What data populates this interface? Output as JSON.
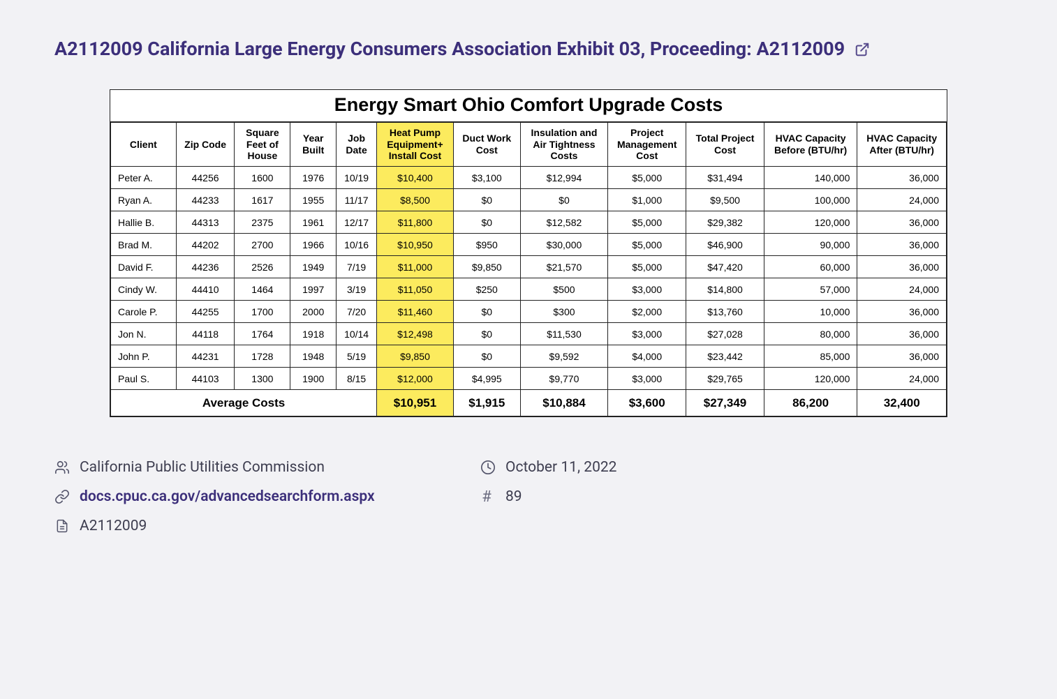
{
  "title": "A2112009 California Large Energy Consumers Association Exhibit 03, Proceeding: A2112009",
  "table": {
    "title": "Energy Smart Ohio Comfort Upgrade Costs",
    "highlight_color": "#fceb5e",
    "border_color": "#222222",
    "columns": [
      "Client",
      "Zip Code",
      "Square Feet of House",
      "Year Built",
      "Job Date",
      "Heat Pump Equipment+ Install Cost",
      "Duct Work Cost",
      "Insulation and Air Tightness Costs",
      "Project Management Cost",
      "Total Project Cost",
      "HVAC Capacity Before (BTU/hr)",
      "HVAC Capacity After (BTU/hr)"
    ],
    "rows": [
      [
        "Peter A.",
        "44256",
        "1600",
        "1976",
        "10/19",
        "$10,400",
        "$3,100",
        "$12,994",
        "$5,000",
        "$31,494",
        "140,000",
        "36,000"
      ],
      [
        "Ryan A.",
        "44233",
        "1617",
        "1955",
        "11/17",
        "$8,500",
        "$0",
        "$0",
        "$1,000",
        "$9,500",
        "100,000",
        "24,000"
      ],
      [
        "Hallie B.",
        "44313",
        "2375",
        "1961",
        "12/17",
        "$11,800",
        "$0",
        "$12,582",
        "$5,000",
        "$29,382",
        "120,000",
        "36,000"
      ],
      [
        "Brad M.",
        "44202",
        "2700",
        "1966",
        "10/16",
        "$10,950",
        "$950",
        "$30,000",
        "$5,000",
        "$46,900",
        "90,000",
        "36,000"
      ],
      [
        "David F.",
        "44236",
        "2526",
        "1949",
        "7/19",
        "$11,000",
        "$9,850",
        "$21,570",
        "$5,000",
        "$47,420",
        "60,000",
        "36,000"
      ],
      [
        "Cindy W.",
        "44410",
        "1464",
        "1997",
        "3/19",
        "$11,050",
        "$250",
        "$500",
        "$3,000",
        "$14,800",
        "57,000",
        "24,000"
      ],
      [
        "Carole P.",
        "44255",
        "1700",
        "2000",
        "7/20",
        "$11,460",
        "$0",
        "$300",
        "$2,000",
        "$13,760",
        "10,000",
        "36,000"
      ],
      [
        "Jon N.",
        "44118",
        "1764",
        "1918",
        "10/14",
        "$12,498",
        "$0",
        "$11,530",
        "$3,000",
        "$27,028",
        "80,000",
        "36,000"
      ],
      [
        "John P.",
        "44231",
        "1728",
        "1948",
        "5/19",
        "$9,850",
        "$0",
        "$9,592",
        "$4,000",
        "$23,442",
        "85,000",
        "36,000"
      ],
      [
        "Paul S.",
        "44103",
        "1300",
        "1900",
        "8/15",
        "$12,000",
        "$4,995",
        "$9,770",
        "$3,000",
        "$29,765",
        "120,000",
        "24,000"
      ]
    ],
    "footer": {
      "label": "Average Costs",
      "values": [
        "$10,951",
        "$1,915",
        "$10,884",
        "$3,600",
        "$27,349",
        "86,200",
        "32,400"
      ]
    }
  },
  "meta": {
    "org": "California Public Utilities Commission",
    "date": "October 11, 2022",
    "link": "docs.cpuc.ca.gov/advancedsearchform.aspx",
    "number": "89",
    "docket": "A2112009"
  }
}
